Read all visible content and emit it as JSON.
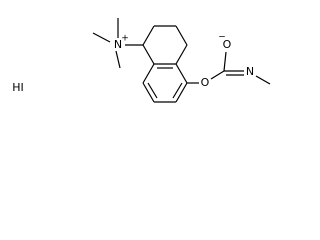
{
  "atoms": {
    "salt": "HI",
    "ammonium_n": "N",
    "ammonium_charge": "+",
    "ether_o": "O",
    "oxide_o": "O",
    "oxide_charge": "−",
    "imine_n": "N"
  }
}
